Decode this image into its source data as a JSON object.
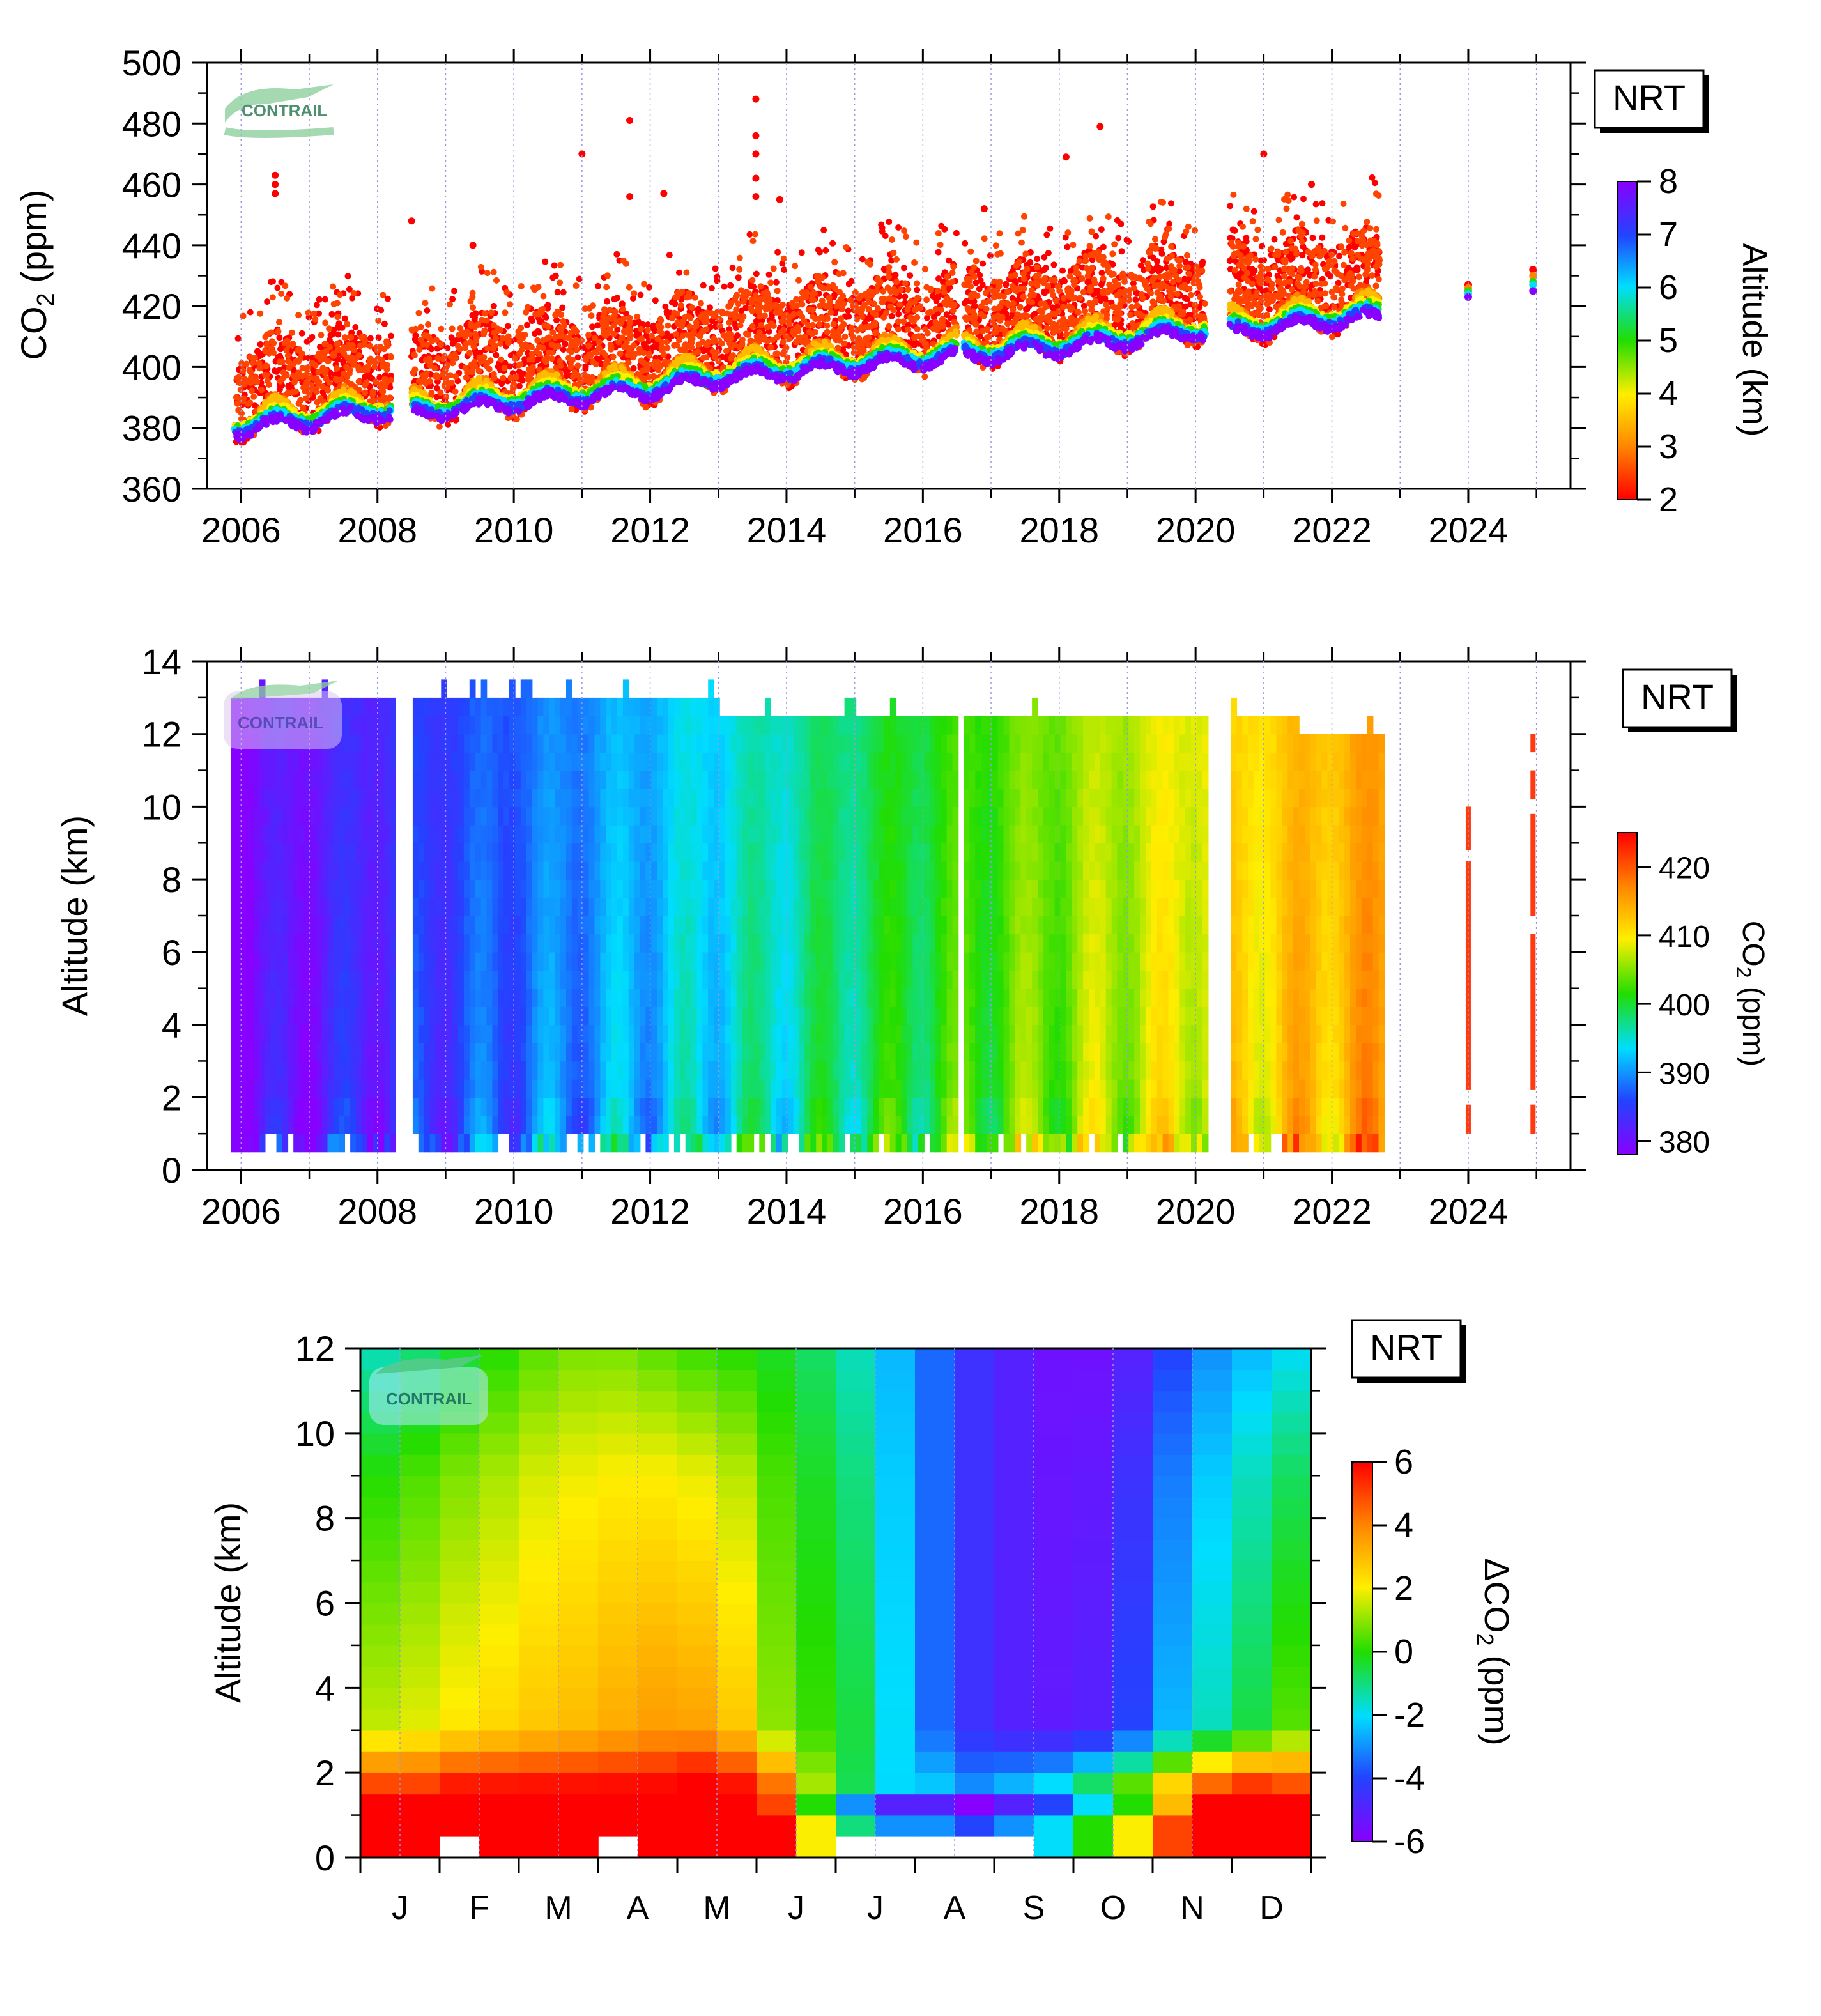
{
  "badge": "NRT",
  "logo": "CONTRAIL",
  "chart_data": [
    {
      "type": "scatter",
      "ylabel": "CO2 (ppm)",
      "ylabel_main": "CO",
      "ylabel_sub": "2",
      "ylabel_tail": " (ppm)",
      "xlim": [
        2005.5,
        2025.5
      ],
      "ylim": [
        360,
        500
      ],
      "xticks": [
        "2006",
        "2008",
        "2010",
        "2012",
        "2014",
        "2016",
        "2018",
        "2020",
        "2022",
        "2024"
      ],
      "yticks": [
        "360",
        "380",
        "400",
        "420",
        "440",
        "460",
        "480",
        "500"
      ],
      "colorbar": {
        "label": "Altitude (km)",
        "ticks": [
          "2",
          "3",
          "4",
          "5",
          "6",
          "7",
          "8"
        ],
        "range": [
          2,
          8
        ]
      },
      "trend": {
        "x": [
          2005.9,
          2006.5,
          2007.0,
          2008.0,
          2008.5,
          2010.0,
          2012.0,
          2013.0,
          2014.0,
          2016.0,
          2016.5,
          2018.0,
          2020.0,
          2020.5,
          2022.0,
          2022.7
        ],
        "y": [
          379,
          381,
          382,
          385,
          384,
          388,
          392,
          396,
          398,
          402,
          403,
          406,
          411,
          411,
          415,
          416
        ]
      },
      "gaps": [
        [
          2008.2,
          2008.5
        ],
        [
          2016.5,
          2016.6
        ],
        [
          2020.15,
          2020.5
        ]
      ],
      "outliers": [
        {
          "x": 2006.5,
          "y": 463
        },
        {
          "x": 2006.5,
          "y": 460
        },
        {
          "x": 2006.5,
          "y": 457
        },
        {
          "x": 2011.0,
          "y": 470
        },
        {
          "x": 2011.7,
          "y": 481
        },
        {
          "x": 2011.7,
          "y": 456
        },
        {
          "x": 2012.2,
          "y": 457
        },
        {
          "x": 2013.55,
          "y": 488
        },
        {
          "x": 2013.55,
          "y": 476
        },
        {
          "x": 2013.55,
          "y": 470
        },
        {
          "x": 2013.55,
          "y": 462
        },
        {
          "x": 2013.55,
          "y": 456
        },
        {
          "x": 2013.9,
          "y": 455
        },
        {
          "x": 2016.9,
          "y": 452
        },
        {
          "x": 2018.1,
          "y": 469
        },
        {
          "x": 2018.6,
          "y": 479
        },
        {
          "x": 2021.0,
          "y": 470
        },
        {
          "x": 2021.7,
          "y": 460
        },
        {
          "x": 2008.5,
          "y": 448
        },
        {
          "x": 2009.4,
          "y": 440
        }
      ],
      "single_points": [
        {
          "x": 2024.0,
          "alt": [
            2,
            3,
            5,
            6,
            8
          ],
          "y": [
            427,
            426,
            425,
            424,
            423
          ]
        },
        {
          "x": 2024.95,
          "alt": [
            2,
            3,
            5,
            6,
            8
          ],
          "y": [
            432,
            430,
            428,
            427,
            425
          ]
        }
      ]
    },
    {
      "type": "heatmap",
      "ylabel": "Altitude (km)",
      "xlim": [
        2005.5,
        2025.5
      ],
      "ylim": [
        0,
        14
      ],
      "xticks": [
        "2006",
        "2008",
        "2010",
        "2012",
        "2014",
        "2016",
        "2018",
        "2020",
        "2022",
        "2024"
      ],
      "yticks": [
        "0",
        "2",
        "4",
        "6",
        "8",
        "10",
        "12",
        "14"
      ],
      "colorbar": {
        "label": "CO2 (ppm)",
        "label_main": "CO",
        "label_sub": "2",
        "label_tail": " (ppm)",
        "ticks": [
          "380",
          "390",
          "400",
          "410",
          "420"
        ],
        "range": [
          378,
          425
        ]
      },
      "data_range_x": [
        2005.85,
        2022.75
      ],
      "altitude_top": 13,
      "gaps": [
        [
          2008.25,
          2008.55
        ],
        [
          2016.5,
          2016.62
        ],
        [
          2020.15,
          2020.48
        ]
      ],
      "extra_columns": [
        {
          "x": 2024.0,
          "segments": [
            [
              1.0,
              1.8
            ],
            [
              2.2,
              8.5
            ],
            [
              8.8,
              10.0
            ]
          ]
        },
        {
          "x": 2024.95,
          "segments": [
            [
              1.0,
              1.8
            ],
            [
              2.2,
              6.5
            ],
            [
              7.0,
              9.8
            ],
            [
              10.2,
              11.0
            ],
            [
              11.5,
              12.0
            ]
          ]
        }
      ]
    },
    {
      "type": "heatmap",
      "ylabel": "Altitude (km)",
      "xlim": [
        0,
        12
      ],
      "ylim": [
        0,
        12
      ],
      "categories": [
        "J",
        "F",
        "M",
        "A",
        "M",
        "J",
        "J",
        "A",
        "S",
        "O",
        "N",
        "D"
      ],
      "yticks": [
        "0",
        "2",
        "4",
        "6",
        "8",
        "10",
        "12"
      ],
      "colorbar": {
        "label": "ΔCO2 (ppm)",
        "label_main": "ΔCO",
        "label_sub": "2",
        "label_tail": " (ppm)",
        "ticks": [
          "-6",
          "-4",
          "-2",
          "0",
          "2",
          "4",
          "6"
        ],
        "range": [
          -6,
          6
        ]
      },
      "rows_alt": [
        0.25,
        0.75,
        1.25,
        1.75,
        2.25,
        2.75,
        3.25,
        3.75,
        4.25,
        4.75,
        5.25,
        5.75,
        6.25,
        6.75,
        7.25,
        7.75,
        8.25,
        8.75,
        9.25,
        9.75,
        10.25,
        10.75,
        11.25,
        11.75
      ],
      "half_month_profiles": {
        "col_mid": [
          0.25,
          0.75,
          1.25,
          1.75,
          2.25,
          2.75,
          3.25,
          3.75,
          4.25,
          4.75,
          5.25,
          5.75,
          6.25,
          6.75,
          7.25,
          7.75,
          8.25,
          8.75,
          9.25,
          9.75,
          10.25,
          10.75,
          11.25,
          11.75
        ],
        "low": [
          8,
          8,
          9,
          9,
          9,
          9,
          9,
          9,
          10,
          9,
          7,
          2,
          -1,
          -3,
          -3,
          -4,
          -3,
          -2,
          0,
          2,
          5,
          8,
          9,
          8
        ],
        "mid": [
          1.5,
          1.8,
          2.2,
          2.5,
          2.8,
          3.0,
          3.3,
          3.6,
          3.5,
          2.8,
          1.0,
          0.2,
          -0.5,
          -2.0,
          -3.5,
          -4.5,
          -5.0,
          -5.2,
          -5.0,
          -4.0,
          -2.5,
          -1.5,
          -0.5,
          0.5
        ],
        "top": [
          -1.5,
          -1.0,
          -0.5,
          0.0,
          0.5,
          0.8,
          0.8,
          0.5,
          0.2,
          0.0,
          -0.3,
          -0.8,
          -1.5,
          -2.5,
          -3.5,
          -4.5,
          -5.0,
          -5.5,
          -5.5,
          -5.0,
          -4.0,
          -3.0,
          -2.5,
          -2.0
        ]
      },
      "empty_cells": [
        [
          2,
          0
        ],
        [
          6,
          0
        ],
        [
          12,
          0
        ],
        [
          13,
          0
        ],
        [
          14,
          0
        ],
        [
          15,
          0
        ],
        [
          16,
          0
        ]
      ]
    }
  ]
}
